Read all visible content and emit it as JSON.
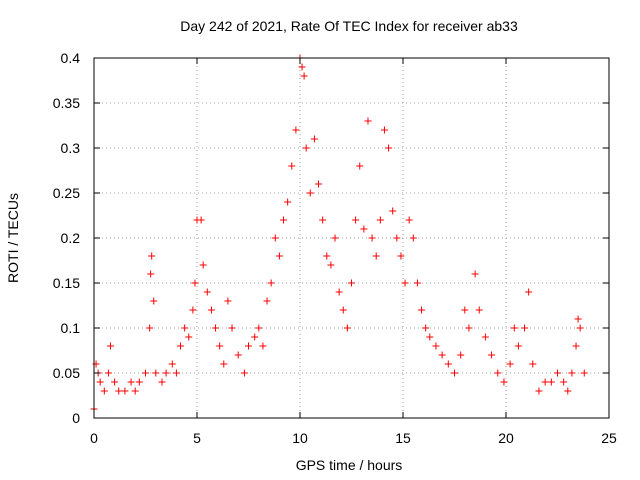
{
  "chart_data": {
    "type": "scatter",
    "title": "Day 242 of 2021, Rate Of TEC Index for receiver ab33",
    "xlabel": "GPS time / hours",
    "ylabel": "ROTI / TECUs",
    "xlim": [
      0,
      25
    ],
    "ylim": [
      0,
      0.4
    ],
    "x_ticks": [
      "0",
      "5",
      "10",
      "15",
      "20",
      "25"
    ],
    "y_ticks": [
      "0",
      "0.05",
      "0.1",
      "0.15",
      "0.2",
      "0.25",
      "0.3",
      "0.35",
      "0.4"
    ],
    "grid": true,
    "marker": "plus",
    "color": "#ff0000",
    "series": [
      {
        "values": [
          [
            0.0,
            0.01
          ],
          [
            0.1,
            0.06
          ],
          [
            0.2,
            0.05
          ],
          [
            0.3,
            0.04
          ],
          [
            0.5,
            0.03
          ],
          [
            0.7,
            0.05
          ],
          [
            0.8,
            0.08
          ],
          [
            1.0,
            0.04
          ],
          [
            1.2,
            0.03
          ],
          [
            1.5,
            0.03
          ],
          [
            1.8,
            0.04
          ],
          [
            2.0,
            0.03
          ],
          [
            2.2,
            0.04
          ],
          [
            2.5,
            0.05
          ],
          [
            2.7,
            0.1
          ],
          [
            2.75,
            0.16
          ],
          [
            2.8,
            0.18
          ],
          [
            2.9,
            0.13
          ],
          [
            3.0,
            0.05
          ],
          [
            3.3,
            0.04
          ],
          [
            3.5,
            0.05
          ],
          [
            3.8,
            0.06
          ],
          [
            4.0,
            0.05
          ],
          [
            4.2,
            0.08
          ],
          [
            4.4,
            0.1
          ],
          [
            4.6,
            0.09
          ],
          [
            4.8,
            0.12
          ],
          [
            4.9,
            0.15
          ],
          [
            5.0,
            0.22
          ],
          [
            5.2,
            0.22
          ],
          [
            5.3,
            0.17
          ],
          [
            5.5,
            0.14
          ],
          [
            5.7,
            0.12
          ],
          [
            5.9,
            0.1
          ],
          [
            6.1,
            0.08
          ],
          [
            6.3,
            0.06
          ],
          [
            6.5,
            0.13
          ],
          [
            6.7,
            0.1
          ],
          [
            7.0,
            0.07
          ],
          [
            7.3,
            0.05
          ],
          [
            7.5,
            0.08
          ],
          [
            7.8,
            0.09
          ],
          [
            8.0,
            0.1
          ],
          [
            8.2,
            0.08
          ],
          [
            8.4,
            0.13
          ],
          [
            8.6,
            0.15
          ],
          [
            8.8,
            0.2
          ],
          [
            9.0,
            0.18
          ],
          [
            9.2,
            0.22
          ],
          [
            9.4,
            0.24
          ],
          [
            9.6,
            0.28
          ],
          [
            9.8,
            0.32
          ],
          [
            10.0,
            0.4
          ],
          [
            10.1,
            0.39
          ],
          [
            10.2,
            0.38
          ],
          [
            10.3,
            0.3
          ],
          [
            10.5,
            0.25
          ],
          [
            10.7,
            0.31
          ],
          [
            10.9,
            0.26
          ],
          [
            11.1,
            0.22
          ],
          [
            11.3,
            0.18
          ],
          [
            11.5,
            0.17
          ],
          [
            11.7,
            0.2
          ],
          [
            11.9,
            0.14
          ],
          [
            12.1,
            0.12
          ],
          [
            12.3,
            0.1
          ],
          [
            12.5,
            0.15
          ],
          [
            12.7,
            0.22
          ],
          [
            12.9,
            0.28
          ],
          [
            13.1,
            0.21
          ],
          [
            13.3,
            0.33
          ],
          [
            13.5,
            0.2
          ],
          [
            13.7,
            0.18
          ],
          [
            13.9,
            0.22
          ],
          [
            14.1,
            0.32
          ],
          [
            14.3,
            0.3
          ],
          [
            14.5,
            0.23
          ],
          [
            14.7,
            0.2
          ],
          [
            14.9,
            0.18
          ],
          [
            15.1,
            0.15
          ],
          [
            15.3,
            0.22
          ],
          [
            15.5,
            0.2
          ],
          [
            15.7,
            0.15
          ],
          [
            15.9,
            0.12
          ],
          [
            16.1,
            0.1
          ],
          [
            16.3,
            0.09
          ],
          [
            16.6,
            0.08
          ],
          [
            16.9,
            0.07
          ],
          [
            17.2,
            0.06
          ],
          [
            17.5,
            0.05
          ],
          [
            17.8,
            0.07
          ],
          [
            18.0,
            0.12
          ],
          [
            18.2,
            0.1
          ],
          [
            18.5,
            0.16
          ],
          [
            18.7,
            0.12
          ],
          [
            19.0,
            0.09
          ],
          [
            19.3,
            0.07
          ],
          [
            19.6,
            0.05
          ],
          [
            19.9,
            0.04
          ],
          [
            20.2,
            0.06
          ],
          [
            20.4,
            0.1
          ],
          [
            20.6,
            0.08
          ],
          [
            20.9,
            0.1
          ],
          [
            21.1,
            0.14
          ],
          [
            21.3,
            0.06
          ],
          [
            21.6,
            0.03
          ],
          [
            21.9,
            0.04
          ],
          [
            22.2,
            0.04
          ],
          [
            22.5,
            0.05
          ],
          [
            22.8,
            0.04
          ],
          [
            23.0,
            0.03
          ],
          [
            23.2,
            0.05
          ],
          [
            23.4,
            0.08
          ],
          [
            23.5,
            0.11
          ],
          [
            23.6,
            0.1
          ],
          [
            23.8,
            0.05
          ]
        ]
      }
    ]
  }
}
